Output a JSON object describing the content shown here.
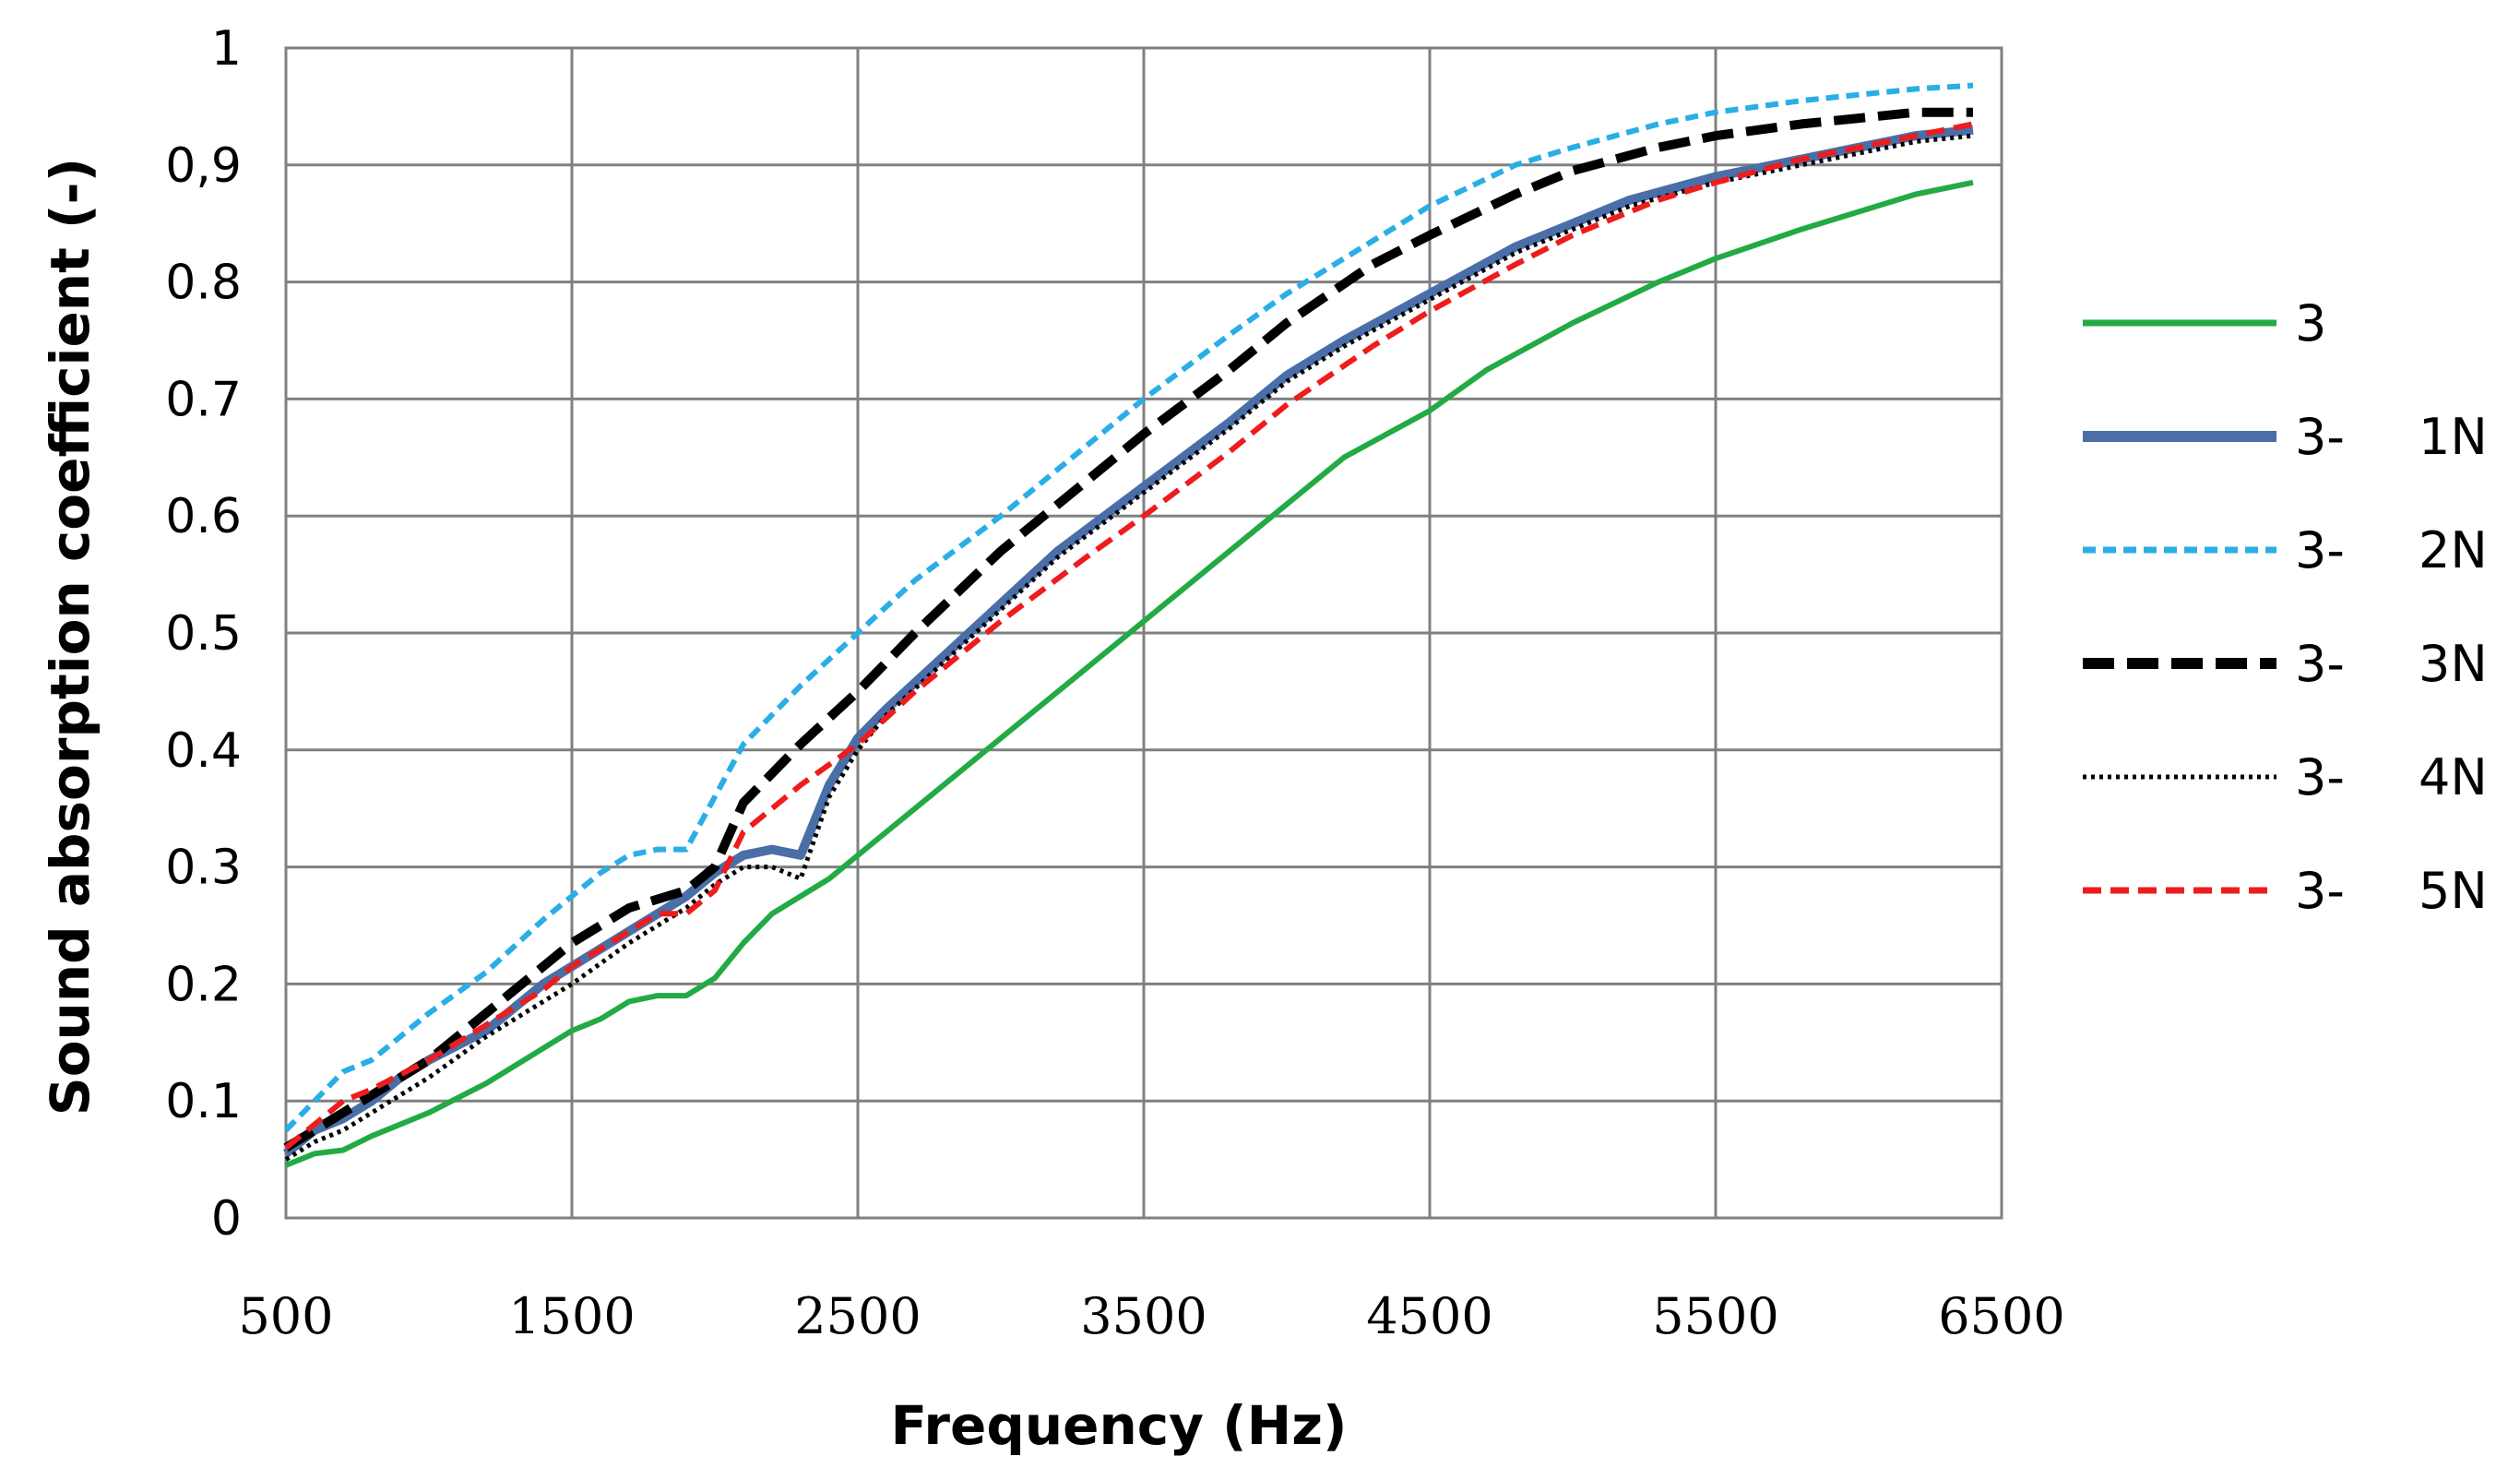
{
  "chart_data": {
    "type": "line",
    "title": "",
    "xlabel": "Frequency (Hz)",
    "ylabel": "Sound absorption coefficient  (-)",
    "xlim": [
      500,
      6500
    ],
    "ylim": [
      0,
      1
    ],
    "x_ticks": [
      {
        "value": 500,
        "label": "500"
      },
      {
        "value": 1500,
        "label": "1500"
      },
      {
        "value": 2500,
        "label": "2500"
      },
      {
        "value": 3500,
        "label": "3500"
      },
      {
        "value": 4500,
        "label": "4500"
      },
      {
        "value": 5500,
        "label": "5500"
      },
      {
        "value": 6500,
        "label": "6500"
      }
    ],
    "y_ticks": [
      {
        "value": 0,
        "label": "0"
      },
      {
        "value": 0.1,
        "label": "0.1"
      },
      {
        "value": 0.2,
        "label": "0.2"
      },
      {
        "value": 0.3,
        "label": "0.3"
      },
      {
        "value": 0.4,
        "label": "0.4"
      },
      {
        "value": 0.5,
        "label": "0.5"
      },
      {
        "value": 0.6,
        "label": "0.6"
      },
      {
        "value": 0.7,
        "label": "0.7"
      },
      {
        "value": 0.8,
        "label": "0.8"
      },
      {
        "value": 0.9,
        "label": "0,9"
      },
      {
        "value": 1,
        "label": "1"
      }
    ],
    "grid": true,
    "legend_position": "right",
    "series": [
      {
        "name": "3",
        "legend_prefix": "3",
        "legend_suffix": "",
        "color": "#22aa44",
        "style": "solid",
        "weight": "normal",
        "points": [
          [
            500,
            0.045
          ],
          [
            600,
            0.055
          ],
          [
            700,
            0.058
          ],
          [
            800,
            0.07
          ],
          [
            1000,
            0.09
          ],
          [
            1200,
            0.115
          ],
          [
            1400,
            0.145
          ],
          [
            1500,
            0.16
          ],
          [
            1600,
            0.17
          ],
          [
            1700,
            0.185
          ],
          [
            1800,
            0.19
          ],
          [
            1900,
            0.19
          ],
          [
            2000,
            0.205
          ],
          [
            2100,
            0.235
          ],
          [
            2200,
            0.26
          ],
          [
            2300,
            0.275
          ],
          [
            2400,
            0.29
          ],
          [
            2600,
            0.33
          ],
          [
            2800,
            0.37
          ],
          [
            3000,
            0.41
          ],
          [
            3200,
            0.45
          ],
          [
            3500,
            0.51
          ],
          [
            3800,
            0.57
          ],
          [
            4000,
            0.61
          ],
          [
            4200,
            0.65
          ],
          [
            4500,
            0.69
          ],
          [
            4700,
            0.725
          ],
          [
            5000,
            0.765
          ],
          [
            5300,
            0.8
          ],
          [
            5500,
            0.82
          ],
          [
            5800,
            0.845
          ],
          [
            6000,
            0.86
          ],
          [
            6200,
            0.875
          ],
          [
            6400,
            0.885
          ]
        ]
      },
      {
        "name": "3-   1N",
        "legend_prefix": "3-",
        "legend_suffix": "1N",
        "color": "#4a6ea8",
        "style": "solid",
        "weight": "bold",
        "points": [
          [
            500,
            0.055
          ],
          [
            600,
            0.075
          ],
          [
            700,
            0.085
          ],
          [
            800,
            0.1
          ],
          [
            900,
            0.12
          ],
          [
            1000,
            0.135
          ],
          [
            1200,
            0.16
          ],
          [
            1400,
            0.2
          ],
          [
            1500,
            0.215
          ],
          [
            1700,
            0.245
          ],
          [
            1900,
            0.275
          ],
          [
            2000,
            0.295
          ],
          [
            2100,
            0.31
          ],
          [
            2200,
            0.315
          ],
          [
            2300,
            0.31
          ],
          [
            2400,
            0.37
          ],
          [
            2500,
            0.41
          ],
          [
            2600,
            0.435
          ],
          [
            2800,
            0.48
          ],
          [
            3000,
            0.525
          ],
          [
            3200,
            0.57
          ],
          [
            3500,
            0.625
          ],
          [
            3800,
            0.68
          ],
          [
            4000,
            0.72
          ],
          [
            4200,
            0.75
          ],
          [
            4500,
            0.79
          ],
          [
            4800,
            0.83
          ],
          [
            5000,
            0.85
          ],
          [
            5200,
            0.87
          ],
          [
            5500,
            0.89
          ],
          [
            5800,
            0.905
          ],
          [
            6000,
            0.915
          ],
          [
            6200,
            0.925
          ],
          [
            6400,
            0.93
          ]
        ]
      },
      {
        "name": "3-   2N",
        "legend_prefix": "3-",
        "legend_suffix": "2N",
        "color": "#29aee6",
        "style": "short-dash",
        "weight": "normal",
        "points": [
          [
            500,
            0.075
          ],
          [
            600,
            0.1
          ],
          [
            700,
            0.125
          ],
          [
            800,
            0.135
          ],
          [
            1000,
            0.175
          ],
          [
            1200,
            0.21
          ],
          [
            1400,
            0.255
          ],
          [
            1500,
            0.275
          ],
          [
            1600,
            0.295
          ],
          [
            1700,
            0.31
          ],
          [
            1800,
            0.315
          ],
          [
            1900,
            0.315
          ],
          [
            2000,
            0.36
          ],
          [
            2100,
            0.405
          ],
          [
            2300,
            0.455
          ],
          [
            2500,
            0.5
          ],
          [
            2700,
            0.545
          ],
          [
            3000,
            0.6
          ],
          [
            3300,
            0.66
          ],
          [
            3500,
            0.7
          ],
          [
            3800,
            0.755
          ],
          [
            4000,
            0.79
          ],
          [
            4300,
            0.835
          ],
          [
            4500,
            0.865
          ],
          [
            4800,
            0.9
          ],
          [
            5000,
            0.915
          ],
          [
            5300,
            0.935
          ],
          [
            5500,
            0.945
          ],
          [
            5800,
            0.955
          ],
          [
            6000,
            0.96
          ],
          [
            6200,
            0.965
          ],
          [
            6400,
            0.968
          ]
        ]
      },
      {
        "name": "3-   3N",
        "legend_prefix": "3-",
        "legend_suffix": "3N",
        "color": "#000000",
        "style": "long-dash",
        "weight": "bold",
        "points": [
          [
            500,
            0.06
          ],
          [
            600,
            0.075
          ],
          [
            700,
            0.09
          ],
          [
            800,
            0.105
          ],
          [
            1000,
            0.135
          ],
          [
            1200,
            0.175
          ],
          [
            1400,
            0.215
          ],
          [
            1500,
            0.235
          ],
          [
            1700,
            0.265
          ],
          [
            1900,
            0.28
          ],
          [
            2000,
            0.3
          ],
          [
            2100,
            0.355
          ],
          [
            2300,
            0.405
          ],
          [
            2500,
            0.45
          ],
          [
            2700,
            0.5
          ],
          [
            3000,
            0.57
          ],
          [
            3300,
            0.63
          ],
          [
            3500,
            0.67
          ],
          [
            3800,
            0.725
          ],
          [
            4000,
            0.765
          ],
          [
            4300,
            0.815
          ],
          [
            4500,
            0.84
          ],
          [
            4800,
            0.875
          ],
          [
            5000,
            0.895
          ],
          [
            5300,
            0.915
          ],
          [
            5500,
            0.925
          ],
          [
            5800,
            0.935
          ],
          [
            6000,
            0.94
          ],
          [
            6200,
            0.945
          ],
          [
            6400,
            0.945
          ]
        ]
      },
      {
        "name": "3-   4N",
        "legend_prefix": "3-",
        "legend_suffix": "4N",
        "color": "#000000",
        "style": "dotted",
        "weight": "normal",
        "points": [
          [
            500,
            0.05
          ],
          [
            600,
            0.065
          ],
          [
            700,
            0.075
          ],
          [
            800,
            0.09
          ],
          [
            1000,
            0.12
          ],
          [
            1200,
            0.155
          ],
          [
            1400,
            0.185
          ],
          [
            1500,
            0.2
          ],
          [
            1700,
            0.235
          ],
          [
            1900,
            0.265
          ],
          [
            2000,
            0.285
          ],
          [
            2100,
            0.3
          ],
          [
            2200,
            0.3
          ],
          [
            2300,
            0.29
          ],
          [
            2400,
            0.36
          ],
          [
            2500,
            0.4
          ],
          [
            2600,
            0.43
          ],
          [
            2800,
            0.475
          ],
          [
            3000,
            0.52
          ],
          [
            3200,
            0.565
          ],
          [
            3500,
            0.62
          ],
          [
            3800,
            0.675
          ],
          [
            4000,
            0.715
          ],
          [
            4200,
            0.745
          ],
          [
            4500,
            0.785
          ],
          [
            4800,
            0.825
          ],
          [
            5000,
            0.845
          ],
          [
            5200,
            0.865
          ],
          [
            5500,
            0.885
          ],
          [
            5800,
            0.9
          ],
          [
            6000,
            0.91
          ],
          [
            6200,
            0.92
          ],
          [
            6400,
            0.925
          ]
        ]
      },
      {
        "name": "3-   5N",
        "legend_prefix": "3-",
        "legend_suffix": "5N",
        "color": "#ee1c1c",
        "style": "dash",
        "weight": "normal",
        "points": [
          [
            500,
            0.06
          ],
          [
            600,
            0.08
          ],
          [
            700,
            0.1
          ],
          [
            800,
            0.11
          ],
          [
            1000,
            0.135
          ],
          [
            1200,
            0.165
          ],
          [
            1400,
            0.195
          ],
          [
            1500,
            0.215
          ],
          [
            1700,
            0.245
          ],
          [
            1800,
            0.26
          ],
          [
            1900,
            0.26
          ],
          [
            2000,
            0.28
          ],
          [
            2100,
            0.33
          ],
          [
            2300,
            0.37
          ],
          [
            2500,
            0.405
          ],
          [
            2700,
            0.45
          ],
          [
            3000,
            0.51
          ],
          [
            3300,
            0.565
          ],
          [
            3500,
            0.6
          ],
          [
            3800,
            0.655
          ],
          [
            4000,
            0.695
          ],
          [
            4300,
            0.745
          ],
          [
            4500,
            0.775
          ],
          [
            4800,
            0.815
          ],
          [
            5000,
            0.84
          ],
          [
            5300,
            0.87
          ],
          [
            5500,
            0.885
          ],
          [
            5800,
            0.905
          ],
          [
            6000,
            0.915
          ],
          [
            6200,
            0.925
          ],
          [
            6400,
            0.935
          ]
        ]
      }
    ]
  }
}
